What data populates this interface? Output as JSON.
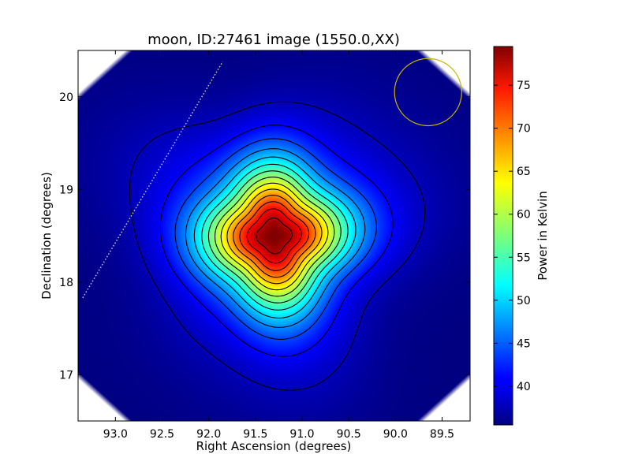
{
  "chart_data": {
    "type": "heatmap",
    "title": "moon, ID:27461 image (1550.0,XX)",
    "xlabel": "Right Ascension (degrees)",
    "ylabel": "Declination (degrees)",
    "xlim": [
      93.4,
      89.2
    ],
    "ylim": [
      16.5,
      20.5
    ],
    "x_ticks": [
      93.0,
      92.5,
      92.0,
      91.5,
      91.0,
      90.5,
      90.0,
      89.5
    ],
    "x_tick_labels": [
      "93.0",
      "92.5",
      "92.0",
      "91.5",
      "91.0",
      "90.5",
      "90.0",
      "89.5"
    ],
    "y_ticks": [
      17,
      18,
      19,
      20
    ],
    "y_tick_labels": [
      "17",
      "18",
      "19",
      "20"
    ],
    "colormap": "jet",
    "colorbar": {
      "label": "Power in Kelvin",
      "range": [
        35.5,
        79.5
      ],
      "ticks": [
        40,
        45,
        50,
        55,
        60,
        65,
        70,
        75
      ],
      "tick_labels": [
        "40",
        "45",
        "50",
        "55",
        "60",
        "65",
        "70",
        "75"
      ]
    },
    "source": {
      "center_ra": 91.3,
      "center_dec": 18.5,
      "peak_kelvin": 79.5,
      "background_kelvin": 35.5
    },
    "beam_circle": {
      "ra": 89.65,
      "dec": 20.05,
      "radius_deg": 0.36,
      "color": "#c8b400"
    },
    "dotted_line": {
      "start": [
        93.35,
        17.83
      ],
      "end": [
        91.85,
        20.38
      ],
      "color": "#c8c8c8"
    },
    "contour_color": "#000000"
  }
}
